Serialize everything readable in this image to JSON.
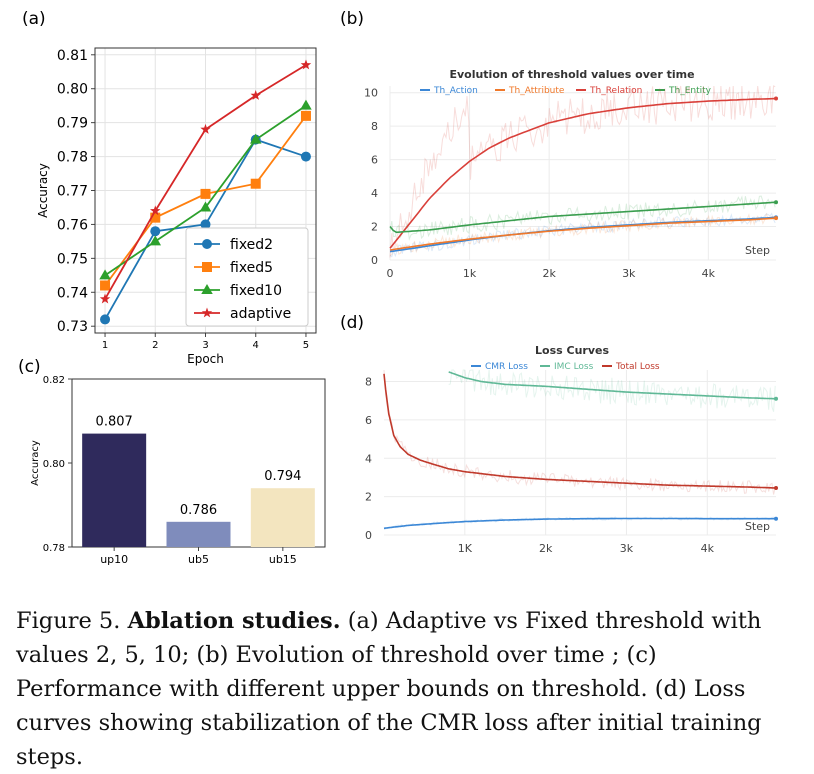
{
  "panels": {
    "a": "(a)",
    "b": "(b)",
    "c": "(c)",
    "d": "(d)"
  },
  "caption": {
    "fig": "Figure 5.",
    "bold": "Ablation studies.",
    "text": " (a) Adaptive vs Fixed threshold with values 2, 5, 10; (b) Evolution of threshold over time ; (c) Performance with different upper bounds on threshold. (d) Loss curves showing stabilization of the CMR loss after initial training steps."
  },
  "chart_data": [
    {
      "id": "a",
      "type": "line",
      "title": "",
      "xlabel": "Epoch",
      "ylabel": "Accuracy",
      "x": [
        1,
        2,
        3,
        4,
        5
      ],
      "ylim": [
        0.728,
        0.812
      ],
      "yticks": [
        "0.73",
        "0.74",
        "0.75",
        "0.76",
        "0.77",
        "0.78",
        "0.79",
        "0.80",
        "0.81"
      ],
      "xticks": [
        "1",
        "2",
        "3",
        "4",
        "5"
      ],
      "legend_position": "bottom-right",
      "series": [
        {
          "name": "fixed2",
          "color": "#1f77b4",
          "marker": "circle",
          "values": [
            0.732,
            0.758,
            0.76,
            0.785,
            0.78
          ]
        },
        {
          "name": "fixed5",
          "color": "#ff7f0e",
          "marker": "square",
          "values": [
            0.742,
            0.762,
            0.769,
            0.772,
            0.792
          ]
        },
        {
          "name": "fixed10",
          "color": "#2ca02c",
          "marker": "triangle",
          "values": [
            0.745,
            0.755,
            0.765,
            0.785,
            0.795
          ]
        },
        {
          "name": "adaptive",
          "color": "#d62728",
          "marker": "star",
          "values": [
            0.738,
            0.764,
            0.788,
            0.798,
            0.807
          ]
        }
      ]
    },
    {
      "id": "b",
      "type": "line",
      "title": "Evolution of threshold values over time",
      "xlabel": "Step",
      "ylabel": "",
      "xlim": [
        0,
        4850
      ],
      "ylim": [
        0,
        10.4
      ],
      "yticks": [
        0,
        2,
        4,
        6,
        8,
        10
      ],
      "xticks": [
        {
          "v": 0,
          "l": "0"
        },
        {
          "v": 1000,
          "l": "1k"
        },
        {
          "v": 2000,
          "l": "2k"
        },
        {
          "v": 3000,
          "l": "3k"
        },
        {
          "v": 4000,
          "l": "4k"
        }
      ],
      "series": [
        {
          "name": "Th_Action",
          "color": "#3b87d6",
          "x": [
            0,
            500,
            1000,
            1500,
            2000,
            2500,
            3000,
            3500,
            4000,
            4500,
            4850
          ],
          "values": [
            0.5,
            0.85,
            1.2,
            1.5,
            1.75,
            1.95,
            2.1,
            2.25,
            2.35,
            2.45,
            2.55
          ]
        },
        {
          "name": "Th_Attribute",
          "color": "#f0782a",
          "x": [
            0,
            500,
            1000,
            1500,
            2000,
            2500,
            3000,
            3500,
            4000,
            4500,
            4850
          ],
          "values": [
            0.6,
            0.95,
            1.25,
            1.5,
            1.72,
            1.9,
            2.05,
            2.2,
            2.3,
            2.4,
            2.5
          ]
        },
        {
          "name": "Th_Relation",
          "color": "#d9403a",
          "x": [
            0,
            250,
            500,
            750,
            1000,
            1250,
            1500,
            2000,
            2500,
            3000,
            3500,
            4000,
            4500,
            4850
          ],
          "values": [
            0.7,
            2.2,
            3.7,
            4.9,
            5.9,
            6.7,
            7.3,
            8.2,
            8.75,
            9.1,
            9.35,
            9.5,
            9.6,
            9.65
          ]
        },
        {
          "name": "Th_Entity",
          "color": "#3a9e4f",
          "x": [
            0,
            60,
            500,
            1000,
            1500,
            2000,
            2500,
            3000,
            3500,
            4000,
            4500,
            4850
          ],
          "values": [
            2.0,
            1.65,
            1.8,
            2.1,
            2.35,
            2.6,
            2.75,
            2.9,
            3.05,
            3.2,
            3.35,
            3.45
          ]
        }
      ]
    },
    {
      "id": "c",
      "type": "bar",
      "title": "",
      "xlabel": "",
      "ylabel": "Accuracy",
      "categories": [
        "up10",
        "ub5",
        "ub15"
      ],
      "values": [
        0.807,
        0.786,
        0.794
      ],
      "data_labels": [
        "0.807",
        "0.786",
        "0.794"
      ],
      "colors": [
        "#2f2a5c",
        "#7f8cbc",
        "#f3e5bf"
      ],
      "ylim": [
        0.78,
        0.82
      ],
      "yticks": [
        "0.78",
        "0.80",
        "0.82"
      ]
    },
    {
      "id": "d",
      "type": "line",
      "title": "Loss Curves",
      "xlabel": "Step",
      "ylabel": "",
      "xlim": [
        0,
        4850
      ],
      "ylim": [
        0,
        8.6
      ],
      "yticks": [
        0,
        2,
        4,
        6,
        8
      ],
      "xticks": [
        {
          "v": 1000,
          "l": "1K"
        },
        {
          "v": 2000,
          "l": "2k"
        },
        {
          "v": 3000,
          "l": "3k"
        },
        {
          "v": 4000,
          "l": "4k"
        }
      ],
      "series": [
        {
          "name": "CMR Loss",
          "color": "#3b87d6",
          "x": [
            0,
            300,
            700,
            1000,
            1500,
            2000,
            2500,
            3000,
            3500,
            4000,
            4500,
            4850
          ],
          "values": [
            0.35,
            0.5,
            0.62,
            0.7,
            0.78,
            0.83,
            0.85,
            0.86,
            0.86,
            0.85,
            0.85,
            0.85
          ]
        },
        {
          "name": "IMC Loss",
          "color": "#5fb896",
          "x": [
            800,
            1000,
            1200,
            1500,
            2000,
            2500,
            3000,
            3500,
            4000,
            4500,
            4850
          ],
          "values": [
            8.5,
            8.2,
            8.0,
            7.85,
            7.75,
            7.6,
            7.45,
            7.35,
            7.25,
            7.15,
            7.1
          ]
        },
        {
          "name": "Total Loss",
          "color": "#c0392b",
          "x": [
            0,
            20,
            60,
            120,
            200,
            300,
            450,
            600,
            800,
            1000,
            1500,
            2000,
            2500,
            3000,
            3500,
            4000,
            4500,
            4850
          ],
          "values": [
            8.4,
            7.6,
            6.3,
            5.2,
            4.6,
            4.2,
            3.9,
            3.7,
            3.45,
            3.3,
            3.05,
            2.9,
            2.8,
            2.7,
            2.6,
            2.55,
            2.5,
            2.45
          ]
        }
      ]
    }
  ]
}
